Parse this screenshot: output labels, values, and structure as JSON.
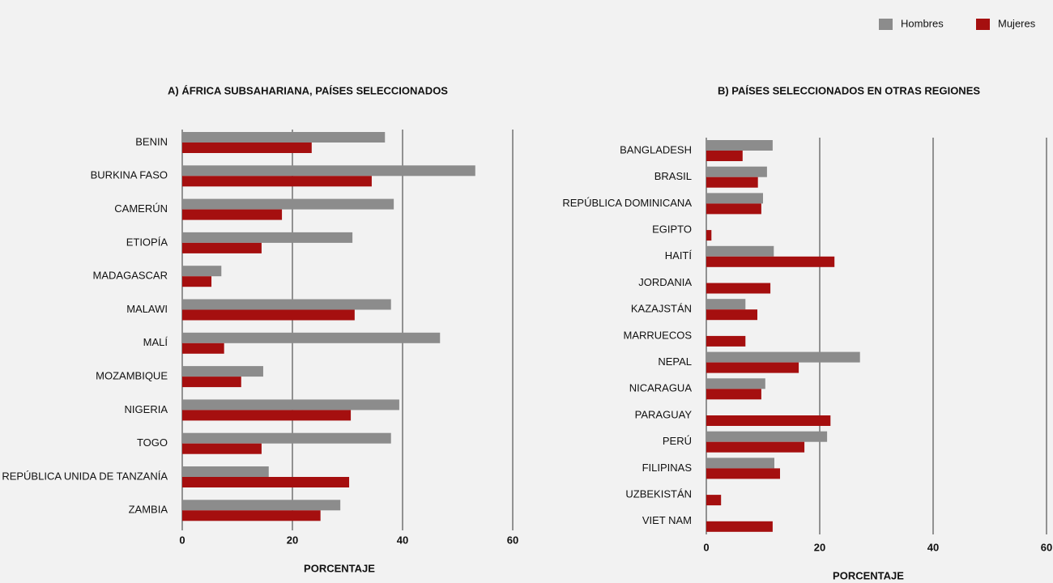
{
  "chart_data": [
    {
      "type": "bar",
      "orientation": "horizontal",
      "title": "A) ÁFRICA SUBSAHARIANA, PAÍSES SELECCIONADOS",
      "xlabel": "PORCENTAJE",
      "categories": [
        "BENIN",
        "BURKINA FASO",
        "CAMERÚN",
        "ETIOPÍA",
        "MADAGASCAR",
        "MALAWI",
        "MALÍ",
        "MOZAMBIQUE",
        "NIGERIA",
        "TOGO",
        "REPÚBLICA UNIDA DE TANZANÍA",
        "ZAMBIA"
      ],
      "series": [
        {
          "name": "Hombres",
          "color": "#8c8c8c",
          "values": [
            36.8,
            53.2,
            38.4,
            30.9,
            7.1,
            37.9,
            46.8,
            14.7,
            39.4,
            37.9,
            15.7,
            28.7
          ]
        },
        {
          "name": "Mujeres",
          "color": "#a50f0f",
          "values": [
            23.5,
            34.4,
            18.1,
            14.4,
            5.3,
            31.3,
            7.6,
            10.7,
            30.6,
            14.4,
            30.3,
            25.1
          ]
        }
      ],
      "xlim": [
        0,
        60
      ],
      "xticks": [
        0,
        20,
        40,
        60
      ],
      "grid": true
    },
    {
      "type": "bar",
      "orientation": "horizontal",
      "title": "B) PAÍSES SELECCIONADOS EN OTRAS REGIONES",
      "xlabel": "PORCENTAJE",
      "categories": [
        "BANGLADESH",
        "BRASIL",
        "REPÚBLICA DOMINICANA",
        "EGIPTO",
        "HAITÍ",
        "JORDANIA",
        "KAZAJSTÁN",
        "MARRUECOS",
        "NEPAL",
        "NICARAGUA",
        "PARAGUAY",
        "PERÚ",
        "FILIPINAS",
        "UZBEKISTÁN",
        "VIET NAM"
      ],
      "series": [
        {
          "name": "Hombres",
          "color": "#8c8c8c",
          "values": [
            11.7,
            10.7,
            10.0,
            null,
            11.9,
            null,
            6.9,
            null,
            27.1,
            10.4,
            null,
            21.3,
            12.0,
            null,
            null
          ]
        },
        {
          "name": "Mujeres",
          "color": "#a50f0f",
          "values": [
            6.4,
            9.1,
            9.7,
            0.9,
            22.6,
            11.3,
            9.0,
            6.9,
            16.3,
            9.7,
            21.9,
            17.3,
            13.0,
            2.6,
            11.7
          ]
        }
      ],
      "xlim": [
        0,
        60
      ],
      "xticks": [
        0,
        20,
        40,
        60
      ],
      "grid": true
    }
  ]
}
